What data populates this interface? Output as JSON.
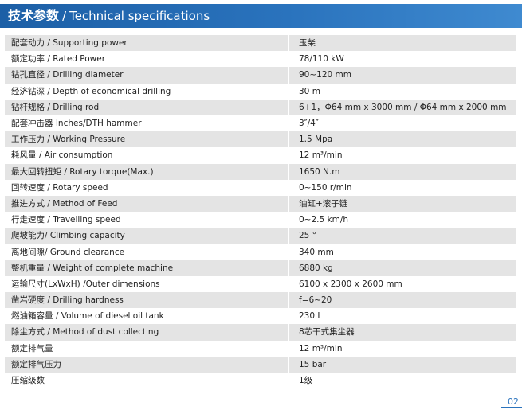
{
  "header": {
    "title_cn": "技术参数",
    "separator": "/",
    "title_en": "Technical specifications"
  },
  "colors": {
    "header_bg": "#2a73bd",
    "row_stripe": "#e4e4e4",
    "page_number": "#2a73bd"
  },
  "specs": [
    {
      "label": "配套动力 / Supporting power",
      "value": "玉柴"
    },
    {
      "label": "额定功率 / Rated Power",
      "value": "78/110 kW"
    },
    {
      "label": "钻孔直径 / Drilling diameter",
      "value": "90~120 mm"
    },
    {
      "label": "经济钻深 / Depth of economical drilling",
      "value": "30 m"
    },
    {
      "label": "钻杆规格 / Drilling rod",
      "value": "6+1，Φ64 mm x 3000 mm / Φ64 mm x 2000 mm"
    },
    {
      "label": "配套冲击器 Inches/DTH hammer",
      "value": "3″/4″"
    },
    {
      "label": "工作压力 / Working Pressure",
      "value": "1.5 Mpa"
    },
    {
      "label": "耗风量 / Air consumption",
      "value": "12 m³/min"
    },
    {
      "label": "最大回转扭矩 / Rotary torque(Max.)",
      "value": "1650 N.m"
    },
    {
      "label": "回转速度 / Rotary speed",
      "value": "0~150 r/min"
    },
    {
      "label": "推进方式 / Method of Feed",
      "value": "油缸+滚子链"
    },
    {
      "label": "行走速度 / Travelling speed",
      "value": "0~2.5 km/h"
    },
    {
      "label": "爬坡能力/ Climbing capacity",
      "value": "25 °"
    },
    {
      "label": "离地间隙/ Ground clearance",
      "value": "340 mm"
    },
    {
      "label": "整机重量 / Weight of complete machine",
      "value": "6880 kg"
    },
    {
      "label": "运输尺寸(LxWxH) /Outer dimensions",
      "value": "6100 x 2300 x 2600 mm"
    },
    {
      "label": "凿岩硬度 / Drilling hardness",
      "value": "f=6~20"
    },
    {
      "label": "燃油箱容量 / Volume of diesel oil tank",
      "value": "230 L"
    },
    {
      "label": "除尘方式 / Method of dust collecting",
      "value": "8芯干式集尘器"
    },
    {
      "label": "额定排气量",
      "value": "12 m³/min"
    },
    {
      "label": "额定排气压力",
      "value": "15 bar"
    },
    {
      "label": "压缩级数",
      "value": "1级"
    }
  ],
  "page_number": "02"
}
